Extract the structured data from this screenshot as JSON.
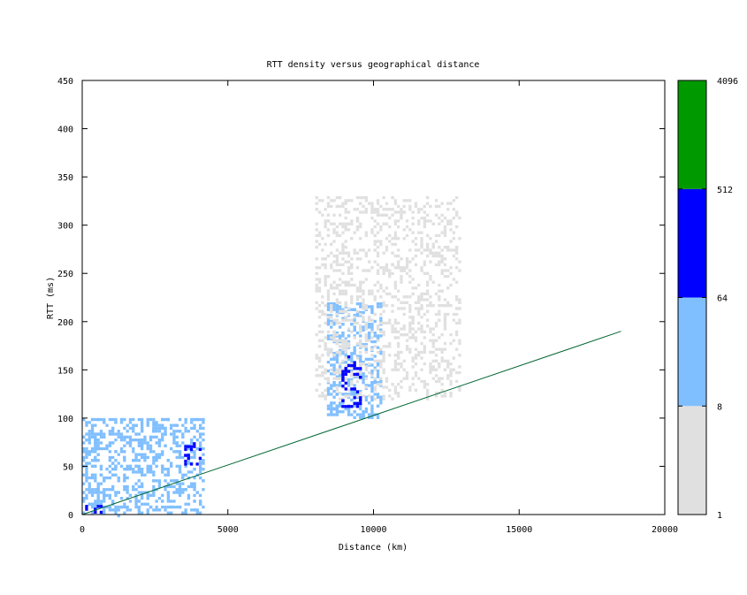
{
  "chart_data": {
    "type": "heatmap",
    "title": "RTT density versus geographical distance",
    "xlabel": "Distance (km)",
    "ylabel": "RTT (ms)",
    "xlim": [
      0,
      20000
    ],
    "ylim": [
      0,
      450
    ],
    "x_ticks": [
      0,
      5000,
      10000,
      15000,
      20000
    ],
    "y_ticks": [
      0,
      50,
      100,
      150,
      200,
      250,
      300,
      350,
      400,
      450
    ],
    "grid": false,
    "colorbar": {
      "scale": "log",
      "tick_labels": [
        "1",
        "8",
        "64",
        "512",
        "4096"
      ],
      "bands": [
        {
          "from": 1,
          "to": 8,
          "color": "#e0e0e0"
        },
        {
          "from": 8,
          "to": 64,
          "color": "#80bfff"
        },
        {
          "from": 64,
          "to": 512,
          "color": "#0000ff"
        },
        {
          "from": 512,
          "to": 4096,
          "color": "#009900"
        }
      ]
    },
    "density_regions": [
      {
        "x": [
          0,
          4200
        ],
        "y": [
          0,
          100
        ],
        "level": "8-64"
      },
      {
        "x": [
          8400,
          10300
        ],
        "y": [
          100,
          220
        ],
        "level": "8-64"
      },
      {
        "x": [
          8000,
          13000
        ],
        "y": [
          120,
          330
        ],
        "level": "1-8"
      },
      {
        "x": [
          3500,
          4100
        ],
        "y": [
          50,
          75
        ],
        "level": "64-512"
      },
      {
        "x": [
          8900,
          9600
        ],
        "y": [
          110,
          165
        ],
        "level": "64-512"
      },
      {
        "x": [
          0,
          700
        ],
        "y": [
          0,
          10
        ],
        "level": "64-512"
      }
    ],
    "reference_line": {
      "name": "",
      "color": "#006633",
      "x": [
        0,
        18500
      ],
      "y": [
        0,
        190
      ]
    }
  }
}
